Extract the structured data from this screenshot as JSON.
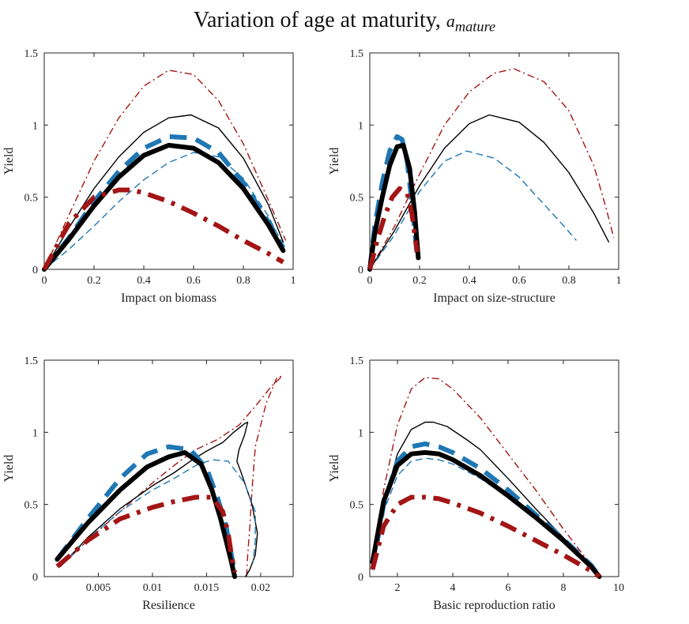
{
  "figure": {
    "title_main": "Variation of age at maturity, ",
    "title_symbol": "a",
    "title_subscript": "mature"
  },
  "legend_styles": {
    "thin_dashdot": {
      "color": "#a31515",
      "dash": "dashdot",
      "weight": "thin"
    },
    "thin_solid": {
      "color": "#000000",
      "dash": "solid",
      "weight": "thin"
    },
    "thin_dashed": {
      "color": "#1f77b4",
      "dash": "dashed",
      "weight": "thin"
    },
    "thick_dashed": {
      "color": "#1f77b4",
      "dash": "dashed",
      "weight": "thick"
    },
    "thick_solid": {
      "color": "#000000",
      "dash": "solid",
      "weight": "thick"
    },
    "thick_dashdot": {
      "color": "#a31515",
      "dash": "dashdot",
      "weight": "thick"
    }
  },
  "chart_data": [
    {
      "type": "line",
      "title": "",
      "xlabel": "Impact on biomass",
      "ylabel": "Yield",
      "xlim": [
        0,
        1
      ],
      "ylim": [
        0,
        1.5
      ],
      "xticks": [
        0,
        0.2,
        0.4,
        0.6,
        0.8,
        1
      ],
      "xticklabels": [
        "0",
        "0.2",
        "0.4",
        "0.6",
        "0.8",
        "1"
      ],
      "yticks": [
        0,
        0.5,
        1,
        1.5
      ],
      "yticklabels": [
        "0",
        "0.5",
        "1",
        "1.5"
      ],
      "series": [
        {
          "style": "thin_dashdot",
          "x": [
            0,
            0.1,
            0.2,
            0.3,
            0.4,
            0.5,
            0.6,
            0.7,
            0.8,
            0.9,
            0.97
          ],
          "y": [
            0,
            0.38,
            0.75,
            1.05,
            1.27,
            1.38,
            1.35,
            1.17,
            0.87,
            0.48,
            0.2
          ]
        },
        {
          "style": "thin_solid",
          "x": [
            0,
            0.1,
            0.2,
            0.3,
            0.4,
            0.5,
            0.59,
            0.7,
            0.8,
            0.9,
            0.96
          ],
          "y": [
            0,
            0.29,
            0.56,
            0.78,
            0.95,
            1.05,
            1.07,
            0.98,
            0.77,
            0.45,
            0.19
          ]
        },
        {
          "style": "thin_dashed",
          "x": [
            0,
            0.1,
            0.2,
            0.3,
            0.4,
            0.5,
            0.6,
            0.7,
            0.8,
            0.9,
            0.95
          ],
          "y": [
            0,
            0.14,
            0.3,
            0.47,
            0.62,
            0.74,
            0.81,
            0.78,
            0.63,
            0.37,
            0.2
          ]
        },
        {
          "style": "thick_dashed",
          "x": [
            0,
            0.1,
            0.2,
            0.3,
            0.4,
            0.5,
            0.6,
            0.7,
            0.8,
            0.9,
            0.96
          ],
          "y": [
            0,
            0.22,
            0.47,
            0.68,
            0.84,
            0.92,
            0.91,
            0.81,
            0.6,
            0.33,
            0.15
          ]
        },
        {
          "style": "thick_solid",
          "x": [
            0,
            0.1,
            0.2,
            0.3,
            0.4,
            0.5,
            0.6,
            0.7,
            0.8,
            0.9,
            0.96
          ],
          "y": [
            0,
            0.21,
            0.44,
            0.64,
            0.79,
            0.86,
            0.84,
            0.74,
            0.56,
            0.31,
            0.13
          ]
        },
        {
          "style": "thick_dashdot",
          "x": [
            0,
            0.1,
            0.2,
            0.3,
            0.35,
            0.4,
            0.5,
            0.6,
            0.7,
            0.8,
            0.9,
            0.96
          ],
          "y": [
            0,
            0.32,
            0.5,
            0.55,
            0.55,
            0.53,
            0.47,
            0.39,
            0.3,
            0.2,
            0.11,
            0.05
          ]
        }
      ]
    },
    {
      "type": "line",
      "title": "",
      "xlabel": "Impact on size-structure",
      "ylabel": "Yield",
      "xlim": [
        0,
        1
      ],
      "ylim": [
        0,
        1.5
      ],
      "xticks": [
        0,
        0.2,
        0.4,
        0.6,
        0.8,
        1
      ],
      "xticklabels": [
        "0",
        "0.2",
        "0.4",
        "0.6",
        "0.8",
        "1"
      ],
      "yticks": [
        0,
        0.5,
        1,
        1.5
      ],
      "yticklabels": [
        "0",
        "0.5",
        "1",
        "1.5"
      ],
      "series": [
        {
          "style": "thin_dashdot",
          "x": [
            0,
            0.1,
            0.2,
            0.3,
            0.4,
            0.5,
            0.58,
            0.7,
            0.8,
            0.9,
            0.95,
            0.98
          ],
          "y": [
            0,
            0.3,
            0.66,
            1.0,
            1.23,
            1.36,
            1.39,
            1.3,
            1.1,
            0.72,
            0.42,
            0.22
          ]
        },
        {
          "style": "thin_solid",
          "x": [
            0,
            0.1,
            0.2,
            0.3,
            0.4,
            0.48,
            0.6,
            0.7,
            0.8,
            0.9,
            0.96
          ],
          "y": [
            0,
            0.27,
            0.58,
            0.84,
            1.01,
            1.07,
            1.02,
            0.88,
            0.67,
            0.39,
            0.19
          ]
        },
        {
          "style": "thin_dashed",
          "x": [
            0,
            0.1,
            0.2,
            0.3,
            0.39,
            0.5,
            0.6,
            0.7,
            0.78,
            0.83
          ],
          "y": [
            0,
            0.24,
            0.54,
            0.75,
            0.82,
            0.77,
            0.64,
            0.45,
            0.3,
            0.2
          ]
        },
        {
          "style": "thick_dashed",
          "x": [
            0,
            0.02,
            0.05,
            0.08,
            0.11,
            0.13,
            0.15,
            0.17,
            0.19
          ],
          "y": [
            0,
            0.3,
            0.6,
            0.82,
            0.92,
            0.9,
            0.75,
            0.45,
            0.1
          ]
        },
        {
          "style": "thick_solid",
          "x": [
            0,
            0.02,
            0.05,
            0.08,
            0.11,
            0.135,
            0.16,
            0.18,
            0.19,
            0.195
          ],
          "y": [
            0,
            0.25,
            0.5,
            0.72,
            0.85,
            0.86,
            0.7,
            0.4,
            0.18,
            0.08
          ]
        },
        {
          "style": "thick_dashdot",
          "x": [
            0,
            0.03,
            0.06,
            0.09,
            0.12,
            0.15,
            0.17,
            0.18,
            0.19
          ],
          "y": [
            0,
            0.2,
            0.37,
            0.5,
            0.56,
            0.53,
            0.38,
            0.25,
            0.12
          ]
        }
      ]
    },
    {
      "type": "line",
      "title": "",
      "xlabel": "Resilience",
      "ylabel": "Yield",
      "xlim": [
        0,
        0.023
      ],
      "ylim": [
        0,
        1.5
      ],
      "xticks": [
        0.005,
        0.01,
        0.015,
        0.02
      ],
      "xticklabels": [
        "0.005",
        "0.01",
        "0.015",
        "0.02"
      ],
      "yticks": [
        0,
        0.5,
        1,
        1.5
      ],
      "yticklabels": [
        "0",
        "0.5",
        "1",
        "1.5"
      ],
      "series": [
        {
          "style": "thin_dashdot",
          "x": [
            0.0015,
            0.004,
            0.007,
            0.01,
            0.0125,
            0.014,
            0.016,
            0.018,
            0.0195,
            0.021,
            0.022,
            0.0215,
            0.0205,
            0.0195,
            0.0192,
            0.019,
            0.0188,
            0.0187
          ],
          "y": [
            0.07,
            0.25,
            0.45,
            0.65,
            0.8,
            0.88,
            0.95,
            1.05,
            1.18,
            1.32,
            1.39,
            1.38,
            1.2,
            0.9,
            0.6,
            0.35,
            0.15,
            0
          ]
        },
        {
          "style": "thin_solid",
          "x": [
            0.0015,
            0.004,
            0.007,
            0.01,
            0.012,
            0.0135,
            0.015,
            0.0165,
            0.0175,
            0.0185,
            0.0188,
            0.0185,
            0.018,
            0.0178,
            0.0182,
            0.0192,
            0.0197,
            0.0195,
            0.019,
            0.0186
          ],
          "y": [
            0.07,
            0.27,
            0.47,
            0.63,
            0.72,
            0.8,
            0.87,
            0.93,
            1.0,
            1.06,
            1.07,
            0.98,
            0.88,
            0.8,
            0.72,
            0.5,
            0.3,
            0.15,
            0.05,
            0
          ]
        },
        {
          "style": "thin_dashed",
          "x": [
            0.0015,
            0.004,
            0.007,
            0.01,
            0.012,
            0.014,
            0.0155,
            0.017,
            0.0185,
            0.0195,
            0.0195,
            0.0193
          ],
          "y": [
            0.07,
            0.26,
            0.45,
            0.6,
            0.68,
            0.77,
            0.81,
            0.8,
            0.65,
            0.45,
            0.25,
            0.1
          ]
        },
        {
          "style": "thick_dashed",
          "x": [
            0.0012,
            0.004,
            0.007,
            0.0095,
            0.0115,
            0.0135,
            0.015,
            0.016,
            0.0168,
            0.0173,
            0.0176
          ],
          "y": [
            0.12,
            0.4,
            0.68,
            0.85,
            0.9,
            0.88,
            0.75,
            0.55,
            0.35,
            0.15,
            0.02
          ]
        },
        {
          "style": "thick_solid",
          "x": [
            0.0012,
            0.004,
            0.007,
            0.0095,
            0.0115,
            0.013,
            0.0145,
            0.0155,
            0.0163,
            0.0168,
            0.0173,
            0.0176
          ],
          "y": [
            0.12,
            0.37,
            0.6,
            0.76,
            0.83,
            0.86,
            0.78,
            0.6,
            0.4,
            0.25,
            0.1,
            0
          ]
        },
        {
          "style": "thick_dashdot",
          "x": [
            0.0012,
            0.004,
            0.007,
            0.01,
            0.012,
            0.014,
            0.0155,
            0.0165,
            0.017,
            0.0173,
            0.0176
          ],
          "y": [
            0.07,
            0.25,
            0.4,
            0.48,
            0.52,
            0.55,
            0.55,
            0.45,
            0.3,
            0.15,
            0.03
          ]
        }
      ]
    },
    {
      "type": "line",
      "title": "",
      "xlabel": "Basic reproduction ratio",
      "ylabel": "Yield",
      "xlim": [
        1,
        10
      ],
      "ylim": [
        0,
        1.5
      ],
      "xticks": [
        2,
        4,
        6,
        8,
        10
      ],
      "xticklabels": [
        "2",
        "4",
        "6",
        "8",
        "10"
      ],
      "yticks": [
        0,
        0.5,
        1,
        1.5
      ],
      "yticklabels": [
        "0",
        "0.5",
        "1",
        "1.5"
      ],
      "series": [
        {
          "style": "thin_dashdot",
          "x": [
            1.1,
            1.5,
            2,
            2.5,
            3,
            3.5,
            4,
            5,
            6,
            7,
            8,
            9,
            9.3
          ],
          "y": [
            0.05,
            0.6,
            1.05,
            1.3,
            1.38,
            1.37,
            1.3,
            1.1,
            0.85,
            0.6,
            0.33,
            0.08,
            0
          ]
        },
        {
          "style": "thin_solid",
          "x": [
            1.1,
            1.5,
            2,
            2.5,
            3,
            3.3,
            3.8,
            4.5,
            5,
            6,
            7,
            8,
            9,
            9.3
          ],
          "y": [
            0.05,
            0.5,
            0.85,
            1.02,
            1.07,
            1.07,
            1.04,
            0.95,
            0.88,
            0.68,
            0.47,
            0.27,
            0.07,
            0
          ]
        },
        {
          "style": "thin_dashed",
          "x": [
            1.1,
            1.5,
            2,
            2.5,
            3,
            3.5,
            4,
            5,
            6,
            7,
            8,
            9,
            9.3
          ],
          "y": [
            0.05,
            0.45,
            0.7,
            0.8,
            0.82,
            0.81,
            0.78,
            0.68,
            0.55,
            0.4,
            0.24,
            0.08,
            0
          ]
        },
        {
          "style": "thick_dashed",
          "x": [
            1.1,
            1.5,
            2,
            2.5,
            3,
            3.5,
            4,
            5,
            6,
            7,
            8,
            9,
            9.3
          ],
          "y": [
            0.05,
            0.5,
            0.8,
            0.9,
            0.92,
            0.9,
            0.86,
            0.75,
            0.6,
            0.43,
            0.26,
            0.08,
            0
          ]
        },
        {
          "style": "thick_solid",
          "x": [
            1.1,
            1.5,
            2,
            2.5,
            3,
            3.5,
            4,
            5,
            6,
            7,
            8,
            9,
            9.3
          ],
          "y": [
            0.1,
            0.52,
            0.77,
            0.85,
            0.86,
            0.85,
            0.81,
            0.7,
            0.56,
            0.41,
            0.25,
            0.07,
            0
          ]
        },
        {
          "style": "thick_dashdot",
          "x": [
            1.1,
            1.5,
            2,
            2.5,
            3,
            3.5,
            4,
            5,
            6,
            7,
            8,
            9,
            9.3
          ],
          "y": [
            0.05,
            0.35,
            0.5,
            0.55,
            0.55,
            0.54,
            0.51,
            0.44,
            0.35,
            0.25,
            0.15,
            0.04,
            0
          ]
        }
      ]
    }
  ]
}
